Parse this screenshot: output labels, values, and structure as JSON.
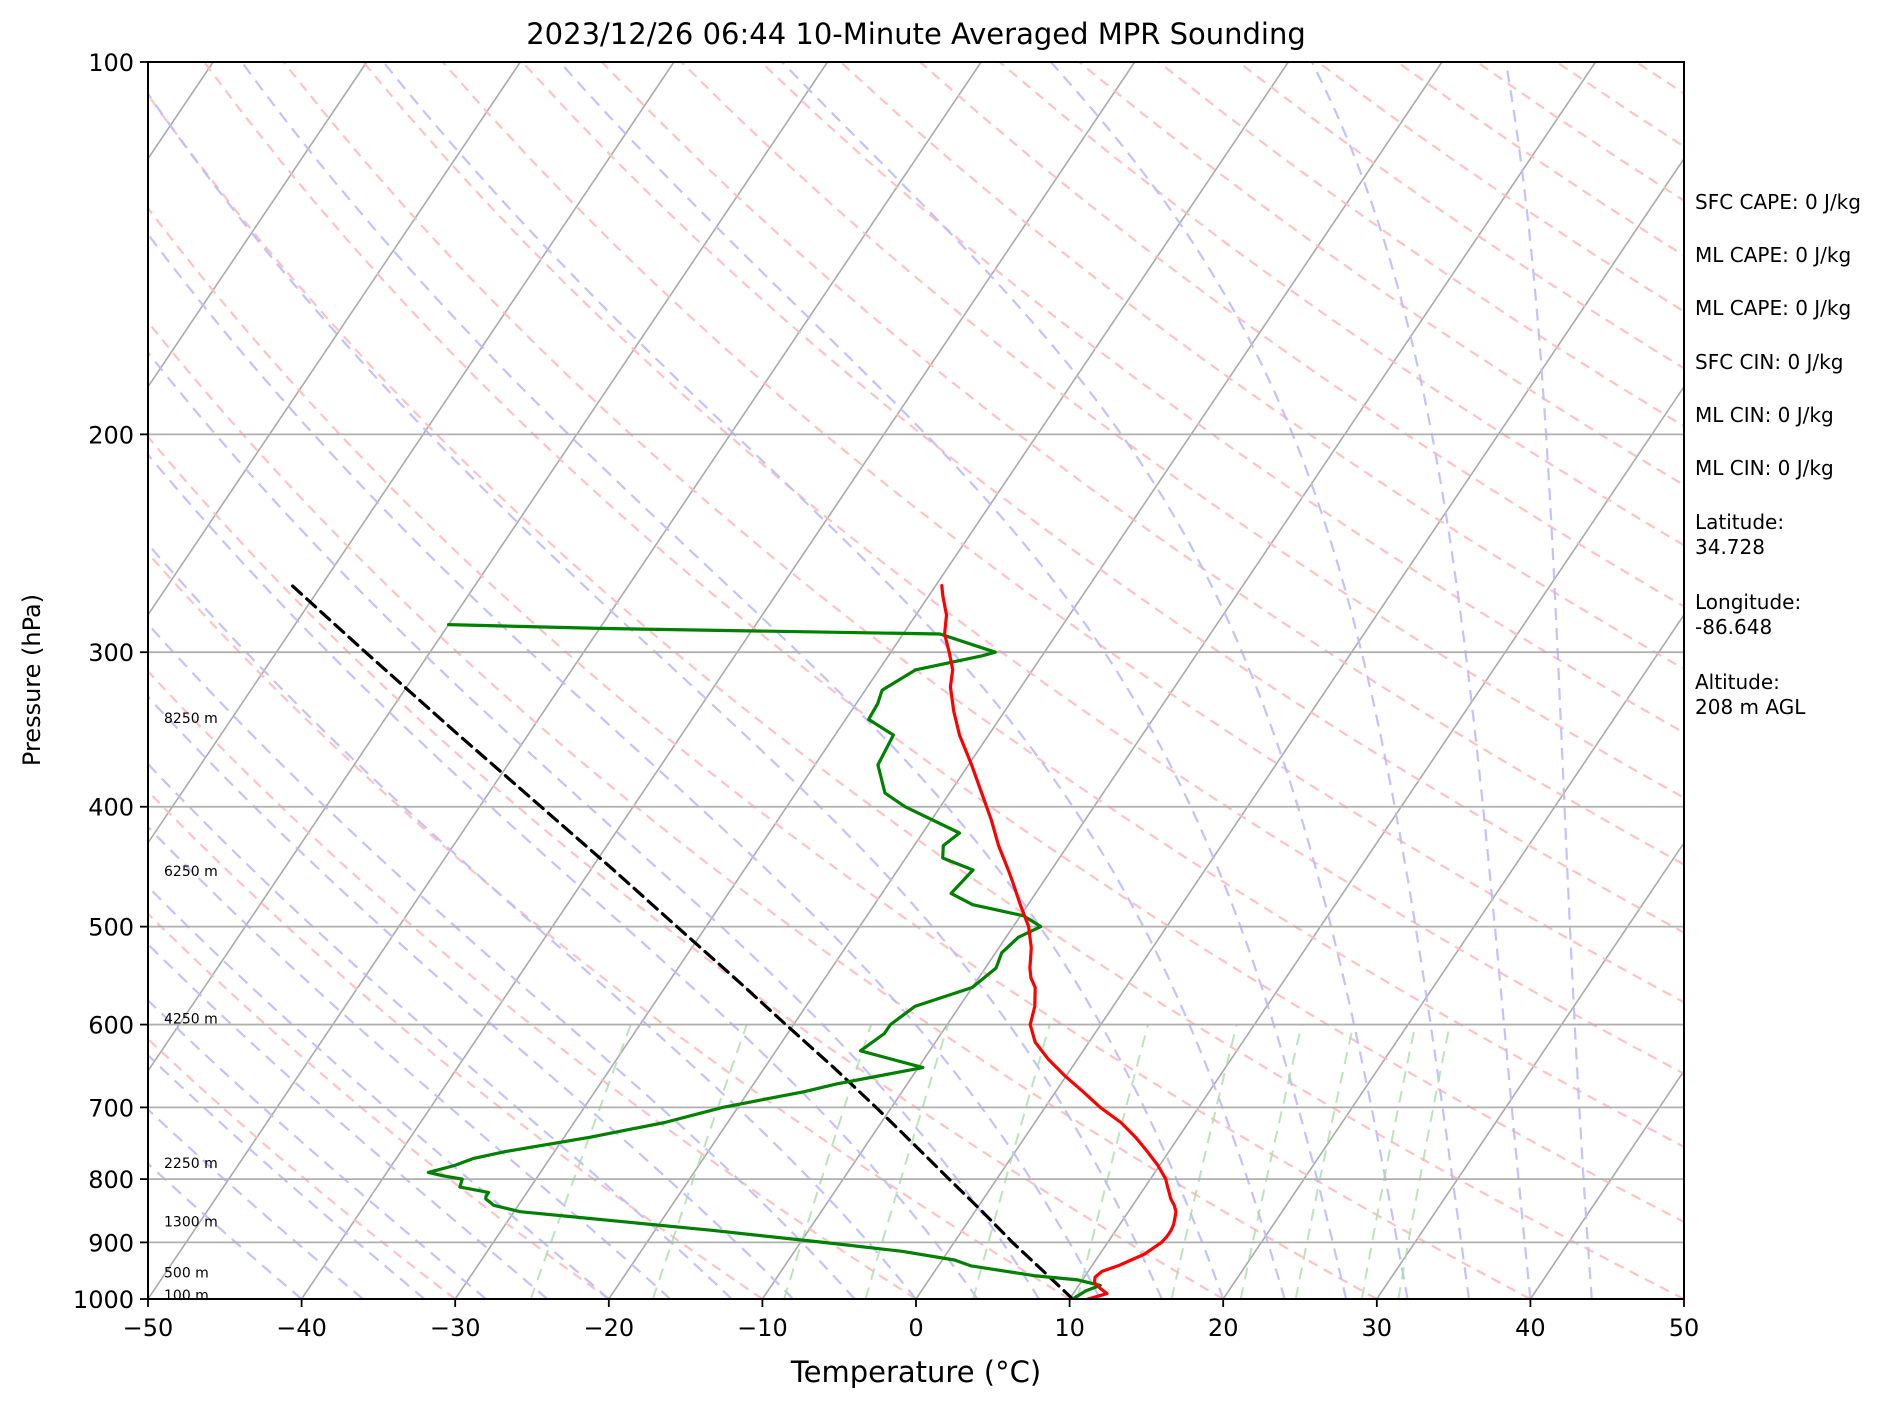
{
  "chart_data": {
    "type": "line",
    "title": "2023/12/26 06:44 10-Minute Averaged MPR Sounding",
    "xlabel": "Temperature (°C)",
    "ylabel": "Pressure (hPa)",
    "xlim": [
      -50,
      50
    ],
    "ylim": [
      1000,
      100
    ],
    "y_scale": "log",
    "skew_t": true,
    "grid": true,
    "x_ticks": [
      "−50",
      "−40",
      "−30",
      "−20",
      "−10",
      "0",
      "10",
      "20",
      "30",
      "40",
      "50"
    ],
    "y_ticks": [
      "100",
      "200",
      "300",
      "400",
      "500",
      "600",
      "700",
      "800",
      "900",
      "1000"
    ],
    "height_labels": [
      {
        "text": "100 m",
        "p": 993
      },
      {
        "text": "500 m",
        "p": 952
      },
      {
        "text": "1300 m",
        "p": 866
      },
      {
        "text": "2250 m",
        "p": 776
      },
      {
        "text": "4250 m",
        "p": 593
      },
      {
        "text": "6250 m",
        "p": 451
      },
      {
        "text": "8250 m",
        "p": 339
      }
    ],
    "temperature": {
      "color": "#ff0000",
      "p": [
        1000,
        990,
        980,
        970,
        960,
        950,
        940,
        930,
        920,
        910,
        900,
        890,
        880,
        870,
        860,
        850,
        840,
        830,
        820,
        810,
        800,
        780,
        760,
        740,
        720,
        700,
        680,
        660,
        640,
        620,
        600,
        580,
        560,
        550,
        540,
        520,
        500,
        480,
        460,
        450,
        430,
        410,
        390,
        370,
        350,
        335,
        320,
        310,
        300,
        290,
        280,
        270,
        265
      ],
      "t": [
        11.2,
        12.2,
        11.5,
        10.9,
        10.7,
        10.9,
        11.7,
        12.3,
        12.9,
        13.2,
        13.5,
        13.6,
        13.6,
        13.5,
        13.3,
        13.1,
        12.7,
        12.2,
        11.8,
        11.4,
        11.0,
        9.9,
        8.6,
        7.2,
        5.6,
        3.6,
        1.8,
        -0.1,
        -1.9,
        -3.5,
        -4.6,
        -5.1,
        -5.9,
        -6.6,
        -7.1,
        -7.9,
        -9.0,
        -10.5,
        -12.0,
        -12.8,
        -14.5,
        -16.1,
        -17.9,
        -19.8,
        -21.9,
        -23.3,
        -24.6,
        -25.2,
        -26.2,
        -27.3,
        -28.0,
        -29.1,
        -29.6
      ]
    },
    "dewpoint": {
      "color": "#008000",
      "p": [
        1000,
        985,
        975,
        965,
        958,
        950,
        940,
        930,
        915,
        900,
        880,
        860,
        850,
        840,
        830,
        826,
        820,
        812,
        800,
        795,
        790,
        780,
        770,
        760,
        740,
        720,
        700,
        680,
        670,
        650,
        630,
        610,
        600,
        580,
        560,
        540,
        525,
        510,
        500,
        490,
        480,
        470,
        450,
        440,
        430,
        420,
        400,
        390,
        370,
        350,
        340,
        330,
        322,
        310,
        302,
        300,
        290,
        287,
        285
      ],
      "t": [
        10.2,
        10.7,
        11.4,
        9.7,
        6.8,
        4.7,
        2.1,
        0.8,
        -3.0,
        -8.5,
        -16.3,
        -25.1,
        -29.6,
        -31.6,
        -32.4,
        -32.5,
        -32.5,
        -34.6,
        -34.8,
        -36.2,
        -37.3,
        -35.9,
        -35.0,
        -33.2,
        -28.3,
        -24.1,
        -21.0,
        -16.4,
        -14.6,
        -9.7,
        -14.5,
        -13.7,
        -13.7,
        -12.9,
        -10.0,
        -9.3,
        -9.6,
        -9.2,
        -8.2,
        -9.8,
        -13.6,
        -15.5,
        -15.1,
        -17.6,
        -18.1,
        -17.6,
        -22.3,
        -24.2,
        -25.9,
        -26.2,
        -28.5,
        -28.6,
        -28.9,
        -27.6,
        -23.9,
        -23.2,
        -27.6,
        -50.0,
        -60.0
      ]
    },
    "parcel": {
      "color": "#000000",
      "style": "dashed",
      "p": [
        1000,
        950,
        900,
        850,
        800,
        750,
        700,
        650,
        600,
        550,
        500,
        450,
        400,
        350,
        300,
        265
      ],
      "t": [
        10.2,
        7.1,
        3.8,
        0.5,
        -3.1,
        -6.9,
        -11.0,
        -15.5,
        -20.5,
        -25.9,
        -31.9,
        -38.5,
        -46.0,
        -54.5,
        -64.2,
        -71.9
      ]
    },
    "stats": [
      "SFC CAPE: 0 J/kg",
      "ML CAPE: 0 J/kg",
      "ML CAPE: 0 J/kg",
      "SFC CIN: 0 J/kg",
      "ML CIN: 0 J/kg",
      "ML CIN: 0 J/kg",
      "Latitude:\n34.728",
      "Longitude:\n-86.648",
      "Altitude:\n208 m AGL"
    ],
    "background": {
      "isotherm_color": "#aaaaaa",
      "dry_adiabat_color": "#ffbbbb",
      "moist_adiabat_color": "#bbbbff",
      "mixing_ratio_color": "#aaddaa"
    }
  }
}
